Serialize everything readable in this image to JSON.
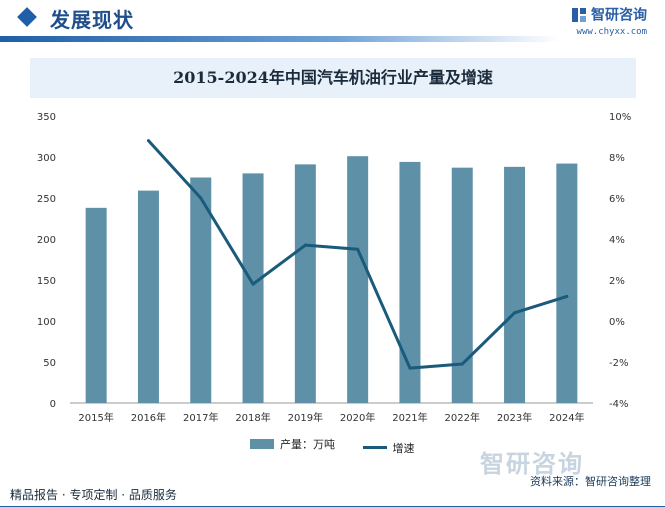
{
  "header": {
    "section_title": "发展现状",
    "brand_name": "智研咨询",
    "brand_url": "www.chyxx.com",
    "logo_icon": "zhiyan-logo-icon"
  },
  "chart_data": {
    "type": "bar",
    "title": "2015-2024年中国汽车机油行业产量及增速",
    "categories": [
      "2015年",
      "2016年",
      "2017年",
      "2018年",
      "2019年",
      "2020年",
      "2021年",
      "2022年",
      "2023年",
      "2024年"
    ],
    "series": [
      {
        "name": "产量：万吨",
        "type": "bar",
        "axis": "left",
        "color": "#5e90a8",
        "values": [
          238,
          259,
          275,
          280,
          291,
          301,
          294,
          287,
          288,
          292
        ]
      },
      {
        "name": "增速",
        "type": "line",
        "axis": "right",
        "color": "#1a5a7a",
        "values": [
          null,
          8.8,
          6.0,
          1.8,
          3.7,
          3.5,
          -2.3,
          -2.1,
          0.4,
          1.2
        ]
      }
    ],
    "ylim": [
      0,
      350
    ],
    "y_ticks": [
      "0",
      "50",
      "100",
      "150",
      "200",
      "250",
      "300",
      "350"
    ],
    "y2lim": [
      -4,
      10
    ],
    "y2_ticks": [
      "-4%",
      "-2%",
      "0%",
      "2%",
      "4%",
      "6%",
      "8%",
      "10%"
    ],
    "grid": false,
    "legend": "bottom"
  },
  "watermark": "智研咨询",
  "source": "资料来源：智研咨询整理",
  "footer": "精品报告 · 专项定制 · 品质服务"
}
